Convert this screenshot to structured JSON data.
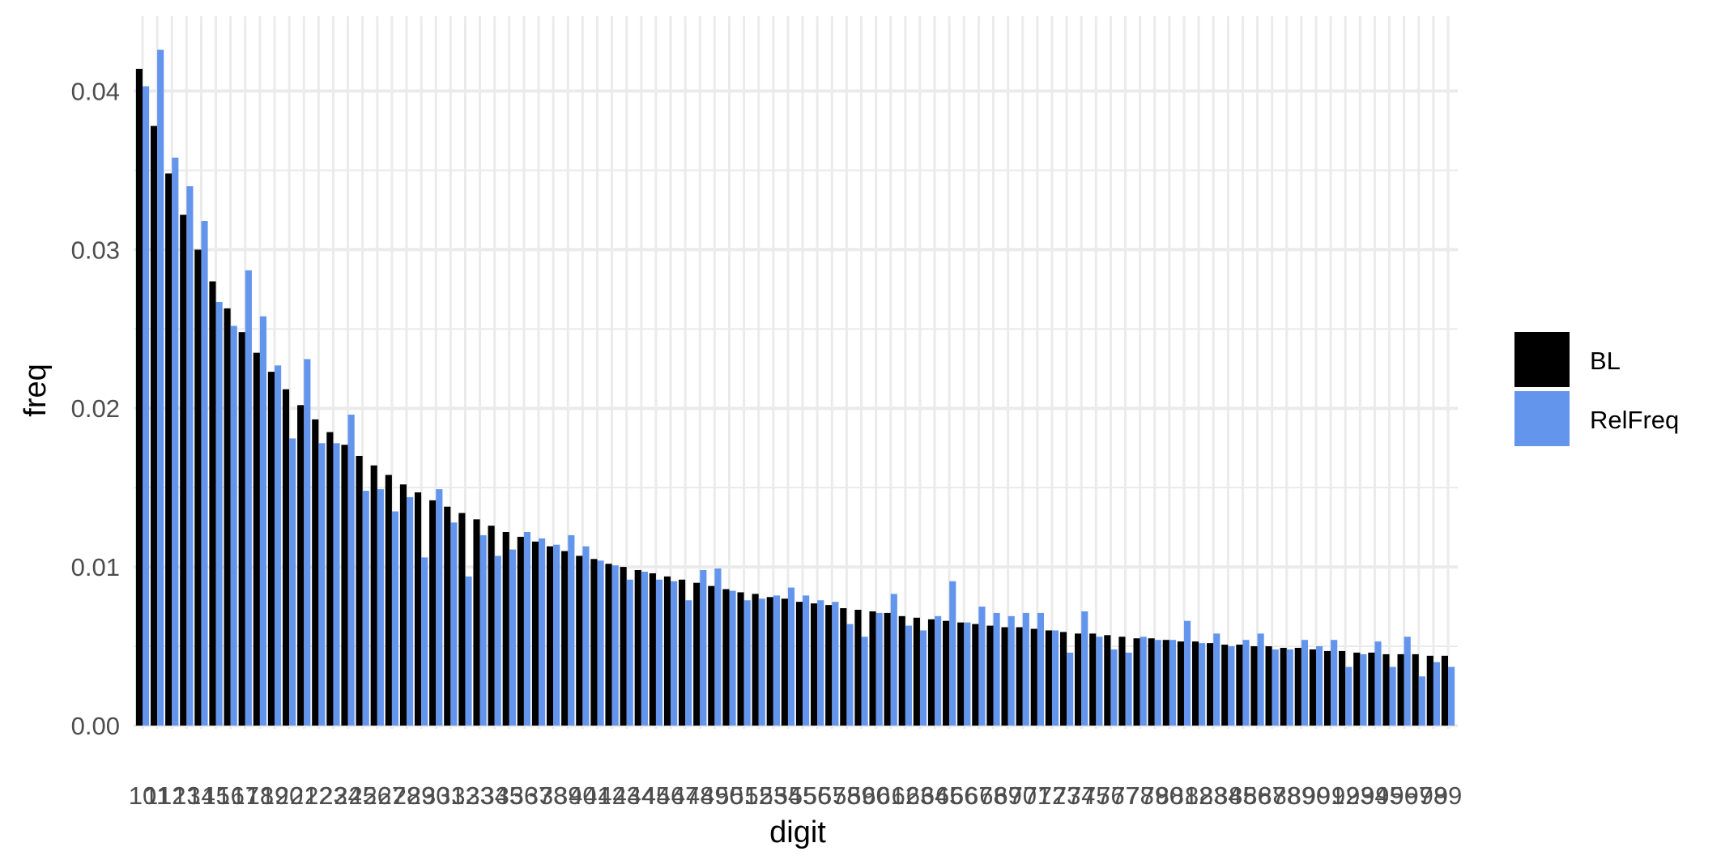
{
  "chart_data": {
    "type": "bar",
    "xlabel": "digit",
    "ylabel": "freq",
    "ylim": [
      0,
      0.0445
    ],
    "y_ticks": [
      "0.00",
      "0.01",
      "0.02",
      "0.03",
      "0.04"
    ],
    "y_tick_values": [
      0,
      0.01,
      0.02,
      0.03,
      0.04
    ],
    "grid": true,
    "legend_position": "right",
    "categories": [
      "10",
      "11",
      "12",
      "13",
      "14",
      "15",
      "16",
      "17",
      "18",
      "19",
      "20",
      "21",
      "22",
      "23",
      "24",
      "25",
      "26",
      "27",
      "28",
      "29",
      "30",
      "31",
      "32",
      "33",
      "34",
      "35",
      "36",
      "37",
      "38",
      "39",
      "40",
      "41",
      "42",
      "43",
      "44",
      "45",
      "46",
      "47",
      "48",
      "49",
      "50",
      "51",
      "52",
      "53",
      "54",
      "55",
      "56",
      "57",
      "58",
      "59",
      "60",
      "61",
      "62",
      "63",
      "64",
      "65",
      "66",
      "67",
      "68",
      "69",
      "70",
      "71",
      "72",
      "73",
      "74",
      "75",
      "76",
      "77",
      "78",
      "79",
      "80",
      "81",
      "82",
      "83",
      "84",
      "85",
      "86",
      "87",
      "88",
      "89",
      "90",
      "91",
      "92",
      "93",
      "94",
      "95",
      "96",
      "97",
      "98",
      "99"
    ],
    "series": [
      {
        "name": "BL",
        "color": "#000000",
        "values": [
          0.0414,
          0.0378,
          0.0348,
          0.0322,
          0.03,
          0.028,
          0.0263,
          0.0248,
          0.0235,
          0.0223,
          0.0212,
          0.0202,
          0.0193,
          0.0185,
          0.0177,
          0.017,
          0.0164,
          0.0158,
          0.0152,
          0.0147,
          0.0142,
          0.0138,
          0.0134,
          0.013,
          0.0126,
          0.0122,
          0.0119,
          0.0116,
          0.0113,
          0.011,
          0.0107,
          0.0105,
          0.0102,
          0.01,
          0.0098,
          0.0096,
          0.0094,
          0.0092,
          0.009,
          0.0088,
          0.0086,
          0.0084,
          0.0083,
          0.0081,
          0.008,
          0.0078,
          0.0077,
          0.0076,
          0.0074,
          0.0073,
          0.0072,
          0.0071,
          0.0069,
          0.0068,
          0.0067,
          0.0066,
          0.0065,
          0.0064,
          0.0063,
          0.0062,
          0.0062,
          0.0061,
          0.006,
          0.0059,
          0.0058,
          0.0058,
          0.0057,
          0.0056,
          0.0055,
          0.0055,
          0.0054,
          0.0053,
          0.0053,
          0.0052,
          0.0051,
          0.0051,
          0.005,
          0.005,
          0.0049,
          0.0049,
          0.0048,
          0.0047,
          0.0047,
          0.0046,
          0.0046,
          0.0045,
          0.0045,
          0.0045,
          0.0044,
          0.0044
        ]
      },
      {
        "name": "RelFreq",
        "color": "#6495ED",
        "values": [
          0.0403,
          0.0426,
          0.0358,
          0.034,
          0.0318,
          0.0267,
          0.0252,
          0.0287,
          0.0258,
          0.0227,
          0.0181,
          0.0231,
          0.0178,
          0.0178,
          0.0196,
          0.0148,
          0.0149,
          0.0135,
          0.0144,
          0.0106,
          0.0149,
          0.0128,
          0.0094,
          0.012,
          0.0107,
          0.0111,
          0.0122,
          0.0118,
          0.0114,
          0.012,
          0.0113,
          0.0104,
          0.0101,
          0.0092,
          0.0097,
          0.0092,
          0.0091,
          0.0079,
          0.0098,
          0.0099,
          0.0085,
          0.0079,
          0.008,
          0.0082,
          0.0087,
          0.0082,
          0.0079,
          0.0078,
          0.0064,
          0.0056,
          0.0071,
          0.0083,
          0.0063,
          0.006,
          0.0069,
          0.0091,
          0.0065,
          0.0075,
          0.0071,
          0.0069,
          0.0071,
          0.0071,
          0.006,
          0.0046,
          0.0072,
          0.0056,
          0.0048,
          0.0046,
          0.0056,
          0.0054,
          0.0054,
          0.0066,
          0.0052,
          0.0058,
          0.005,
          0.0054,
          0.0058,
          0.0048,
          0.0048,
          0.0054,
          0.005,
          0.0054,
          0.0037,
          0.0045,
          0.0053,
          0.0037,
          0.0056,
          0.0031,
          0.004,
          0.0037
        ]
      }
    ]
  }
}
